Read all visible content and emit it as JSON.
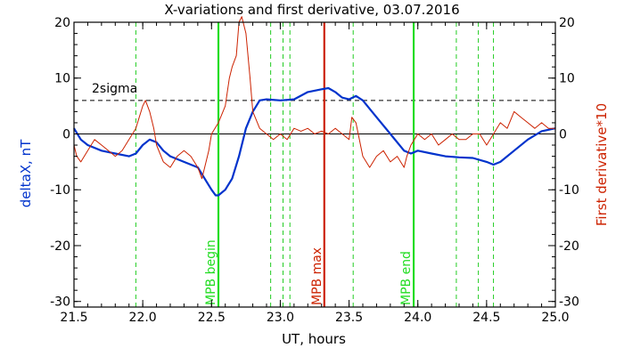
{
  "chart_data": {
    "type": "line",
    "title": "X-variations and first derivative, 03.07.2016",
    "xlabel": "UT, hours",
    "ylabel_left": "deltaX, nT",
    "ylabel_right": "First derivative*10",
    "xlim": [
      21.5,
      25.0
    ],
    "ylim_left": [
      -31,
      20
    ],
    "ylim_right": [
      -31,
      20
    ],
    "xticks": [
      "21.5",
      "22.0",
      "22.5",
      "23.0",
      "23.5",
      "24.0",
      "24.5",
      "25.0"
    ],
    "yticks_left": [
      "20",
      "10",
      "0",
      "-10",
      "-20",
      "-30"
    ],
    "yticks_right": [
      "20",
      "10",
      "0",
      "-10",
      "-20",
      "-30"
    ],
    "sigma_label": "2sigma",
    "sigma_level": 6,
    "colors": {
      "deltaX": "#0033cc",
      "derivative": "#cc2200",
      "mpb_green": "#22dd22",
      "mpb_red": "#cc2200",
      "dashed_green": "#22cc22"
    },
    "series": [
      {
        "key": "deltaX",
        "x": [
          21.5,
          21.55,
          21.6,
          21.7,
          21.8,
          21.9,
          21.95,
          22.0,
          22.05,
          22.1,
          22.15,
          22.2,
          22.3,
          22.4,
          22.45,
          22.5,
          22.53,
          22.55,
          22.6,
          22.65,
          22.7,
          22.75,
          22.8,
          22.85,
          22.9,
          23.0,
          23.1,
          23.2,
          23.3,
          23.35,
          23.4,
          23.45,
          23.5,
          23.55,
          23.6,
          23.7,
          23.8,
          23.9,
          23.95,
          24.0,
          24.1,
          24.2,
          24.3,
          24.4,
          24.5,
          24.55,
          24.6,
          24.7,
          24.8,
          24.9,
          25.0
        ],
        "y": [
          1,
          -1,
          -2,
          -3,
          -3.5,
          -4,
          -3.5,
          -2,
          -1,
          -1.5,
          -3,
          -4,
          -5,
          -6,
          -8,
          -10,
          -11,
          -11,
          -10,
          -8,
          -4,
          1,
          4,
          6,
          6.2,
          6,
          6.2,
          7.5,
          8,
          8.2,
          7.5,
          6.5,
          6.2,
          6.8,
          6,
          3,
          0,
          -3,
          -3.5,
          -3,
          -3.5,
          -4,
          -4.2,
          -4.3,
          -5,
          -5.5,
          -5,
          -3,
          -1,
          0.5,
          1
        ]
      },
      {
        "key": "derivative",
        "x": [
          21.5,
          21.52,
          21.55,
          21.6,
          21.65,
          21.7,
          21.75,
          21.8,
          21.85,
          21.9,
          21.95,
          22.0,
          22.02,
          22.05,
          22.08,
          22.1,
          22.15,
          22.2,
          22.25,
          22.3,
          22.35,
          22.4,
          22.43,
          22.45,
          22.48,
          22.5,
          22.55,
          22.6,
          22.63,
          22.65,
          22.68,
          22.7,
          22.72,
          22.75,
          22.78,
          22.8,
          22.85,
          22.9,
          22.95,
          23.0,
          23.05,
          23.1,
          23.15,
          23.2,
          23.25,
          23.3,
          23.35,
          23.4,
          23.45,
          23.5,
          23.52,
          23.55,
          23.6,
          23.65,
          23.7,
          23.75,
          23.8,
          23.85,
          23.9,
          23.92,
          23.95,
          24.0,
          24.05,
          24.1,
          24.15,
          24.2,
          24.25,
          24.3,
          24.35,
          24.4,
          24.45,
          24.5,
          24.55,
          24.6,
          24.65,
          24.7,
          24.75,
          24.8,
          24.85,
          24.9,
          24.95,
          25.0
        ],
        "y": [
          -2,
          -4,
          -5,
          -3,
          -1,
          -2,
          -3,
          -4,
          -3,
          -1,
          1,
          5,
          6,
          4,
          1,
          -2,
          -5,
          -6,
          -4,
          -3,
          -4,
          -6,
          -8,
          -6,
          -3,
          0,
          2,
          5,
          10,
          12,
          14,
          20,
          21,
          18,
          10,
          4,
          1,
          0,
          -1,
          0,
          -1,
          1,
          0.5,
          1,
          0,
          0.5,
          0,
          1,
          0,
          -1,
          3,
          2,
          -4,
          -6,
          -4,
          -3,
          -5,
          -4,
          -6,
          -4,
          -2,
          0,
          -1,
          0,
          -2,
          -1,
          0,
          -1,
          -1,
          0,
          0,
          -2,
          0,
          2,
          1,
          4,
          3,
          2,
          1,
          2,
          1,
          1
        ]
      }
    ],
    "vlines": [
      {
        "x": 21.95,
        "style": "dashed-green"
      },
      {
        "x": 22.55,
        "style": "solid-green",
        "label": "MPB begin"
      },
      {
        "x": 22.93,
        "style": "dashed-green"
      },
      {
        "x": 23.02,
        "style": "dashed-green"
      },
      {
        "x": 23.07,
        "style": "dashed-green"
      },
      {
        "x": 23.32,
        "style": "solid-red",
        "label": "MPB max"
      },
      {
        "x": 23.53,
        "style": "dashed-green"
      },
      {
        "x": 23.97,
        "style": "solid-green",
        "label": "MPB end"
      },
      {
        "x": 24.28,
        "style": "dashed-green"
      },
      {
        "x": 24.44,
        "style": "dashed-green"
      },
      {
        "x": 24.55,
        "style": "dashed-green"
      }
    ]
  }
}
